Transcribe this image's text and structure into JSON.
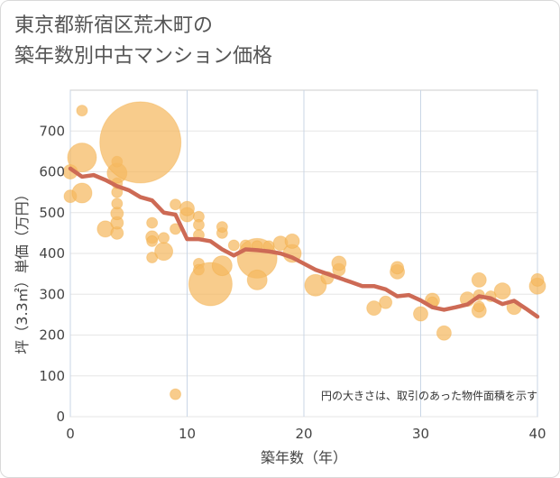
{
  "title_line1": "東京都新宿区荒木町の",
  "title_line2": "築年数別中古マンション価格",
  "chart_data": {
    "type": "scatter",
    "xlabel": "築年数（年）",
    "ylabel": "坪（3.3㎡）単価（万円）",
    "xlim": [
      0,
      40
    ],
    "ylim": [
      0,
      800
    ],
    "xticks": [
      0,
      10,
      20,
      30,
      40
    ],
    "yticks": [
      0,
      100,
      200,
      300,
      400,
      500,
      600,
      700
    ],
    "grid": true,
    "note": "円の大きさは、取引のあった物件面積を示す",
    "colors": {
      "bubble": "#f5b95f",
      "line": "#cd6a55"
    },
    "bubbles": [
      {
        "x": 0,
        "y": 540,
        "r": 7
      },
      {
        "x": 0,
        "y": 600,
        "r": 8
      },
      {
        "x": 1,
        "y": 635,
        "r": 16
      },
      {
        "x": 1,
        "y": 548,
        "r": 11
      },
      {
        "x": 1,
        "y": 750,
        "r": 6
      },
      {
        "x": 3,
        "y": 460,
        "r": 9
      },
      {
        "x": 4,
        "y": 450,
        "r": 7
      },
      {
        "x": 4,
        "y": 475,
        "r": 7
      },
      {
        "x": 4,
        "y": 498,
        "r": 7
      },
      {
        "x": 4,
        "y": 522,
        "r": 6
      },
      {
        "x": 4,
        "y": 550,
        "r": 6
      },
      {
        "x": 4,
        "y": 572,
        "r": 6
      },
      {
        "x": 4,
        "y": 597,
        "r": 11
      },
      {
        "x": 4,
        "y": 625,
        "r": 6
      },
      {
        "x": 6,
        "y": 672,
        "r": 45
      },
      {
        "x": 7,
        "y": 475,
        "r": 6
      },
      {
        "x": 7,
        "y": 440,
        "r": 7
      },
      {
        "x": 7,
        "y": 430,
        "r": 6
      },
      {
        "x": 7,
        "y": 390,
        "r": 6
      },
      {
        "x": 8,
        "y": 405,
        "r": 10
      },
      {
        "x": 8,
        "y": 438,
        "r": 6
      },
      {
        "x": 9,
        "y": 460,
        "r": 6
      },
      {
        "x": 9,
        "y": 520,
        "r": 6
      },
      {
        "x": 9,
        "y": 55,
        "r": 6
      },
      {
        "x": 10,
        "y": 495,
        "r": 8
      },
      {
        "x": 10,
        "y": 510,
        "r": 8
      },
      {
        "x": 11,
        "y": 490,
        "r": 6
      },
      {
        "x": 11,
        "y": 470,
        "r": 6
      },
      {
        "x": 11,
        "y": 445,
        "r": 6
      },
      {
        "x": 11,
        "y": 375,
        "r": 6
      },
      {
        "x": 11,
        "y": 360,
        "r": 6
      },
      {
        "x": 12,
        "y": 325,
        "r": 24
      },
      {
        "x": 13,
        "y": 370,
        "r": 11
      },
      {
        "x": 13,
        "y": 450,
        "r": 6
      },
      {
        "x": 13,
        "y": 465,
        "r": 6
      },
      {
        "x": 14,
        "y": 420,
        "r": 6
      },
      {
        "x": 15,
        "y": 420,
        "r": 6
      },
      {
        "x": 16,
        "y": 388,
        "r": 22
      },
      {
        "x": 16,
        "y": 335,
        "r": 11
      },
      {
        "x": 16,
        "y": 418,
        "r": 6
      },
      {
        "x": 17,
        "y": 418,
        "r": 6
      },
      {
        "x": 18,
        "y": 425,
        "r": 8
      },
      {
        "x": 19,
        "y": 400,
        "r": 10
      },
      {
        "x": 19,
        "y": 430,
        "r": 8
      },
      {
        "x": 21,
        "y": 322,
        "r": 12
      },
      {
        "x": 22,
        "y": 340,
        "r": 7
      },
      {
        "x": 23,
        "y": 360,
        "r": 7
      },
      {
        "x": 23,
        "y": 376,
        "r": 8
      },
      {
        "x": 26,
        "y": 266,
        "r": 8
      },
      {
        "x": 27,
        "y": 280,
        "r": 7
      },
      {
        "x": 28,
        "y": 355,
        "r": 8
      },
      {
        "x": 28,
        "y": 365,
        "r": 7
      },
      {
        "x": 30,
        "y": 252,
        "r": 8
      },
      {
        "x": 31,
        "y": 285,
        "r": 8
      },
      {
        "x": 31,
        "y": 280,
        "r": 6
      },
      {
        "x": 32,
        "y": 205,
        "r": 8
      },
      {
        "x": 34,
        "y": 288,
        "r": 8
      },
      {
        "x": 35,
        "y": 260,
        "r": 8
      },
      {
        "x": 35,
        "y": 298,
        "r": 6
      },
      {
        "x": 35,
        "y": 335,
        "r": 8
      },
      {
        "x": 35,
        "y": 270,
        "r": 6
      },
      {
        "x": 36,
        "y": 295,
        "r": 6
      },
      {
        "x": 37,
        "y": 308,
        "r": 9
      },
      {
        "x": 38,
        "y": 268,
        "r": 8
      },
      {
        "x": 40,
        "y": 320,
        "r": 9
      },
      {
        "x": 40,
        "y": 335,
        "r": 7
      }
    ],
    "trend": {
      "x": [
        0,
        1,
        2,
        3,
        4,
        5,
        6,
        7,
        8,
        9,
        10,
        11,
        12,
        13,
        14,
        15,
        16,
        17,
        18,
        19,
        20,
        21,
        22,
        23,
        24,
        25,
        26,
        27,
        28,
        29,
        30,
        31,
        32,
        33,
        34,
        35,
        36,
        37,
        38,
        39,
        40
      ],
      "y": [
        608,
        588,
        592,
        580,
        565,
        555,
        538,
        530,
        500,
        495,
        435,
        435,
        430,
        410,
        395,
        410,
        408,
        405,
        400,
        390,
        375,
        360,
        350,
        340,
        330,
        320,
        320,
        312,
        295,
        298,
        285,
        268,
        262,
        268,
        275,
        295,
        290,
        276,
        284,
        265,
        245
      ]
    }
  }
}
